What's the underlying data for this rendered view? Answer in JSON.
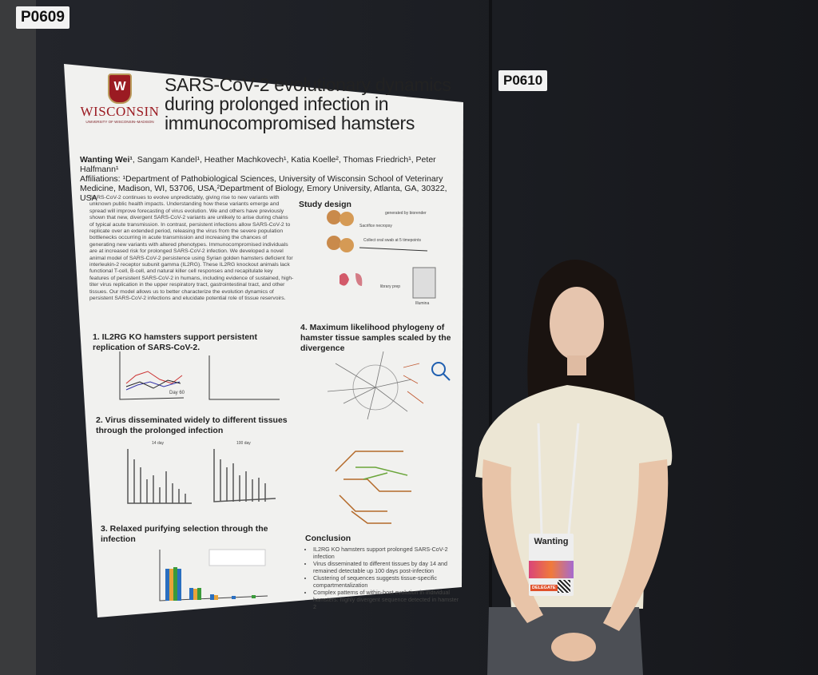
{
  "booth_labels": {
    "left": "P0609",
    "right": "P0610"
  },
  "poster": {
    "logo": {
      "crest_letter": "W",
      "wordmark": "WISCONSIN",
      "subtitle": "UNIVERSITY OF WISCONSIN–MADISON"
    },
    "title": "SARS-CoV-2 evolutionary dynamics during prolonged infection in immunocompromised hamsters",
    "lead_author": "Wanting Wei¹",
    "authors": ", Sangam Kandel¹, Heather Machkovech¹, Katia Koelle², Thomas Friedrich¹, Peter Halfmann¹",
    "affiliations": "Affiliations: ¹Department of Pathobiological Sciences, University of Wisconsin School of Veterinary Medicine, Madison, WI, 53706, USA,²Department of Biology, Emory University, Atlanta, GA, 30322, USA",
    "abstract": "SARS-CoV-2 continues to evolve unpredictably, giving rise to new variants with unknown public health impacts. Understanding how these variants emerge and spread will improve forecasting of virus evolution. We and others have previously shown that new, divergent SARS-CoV-2 variants are unlikely to arise during chains of typical acute transmission. In contrast, persistent infections allow SARS-CoV-2 to replicate over an extended period, releasing the virus from the severe population bottlenecks occurring in acute transmission and increasing the chances of generating new variants with altered phenotypes. Immunocompromised individuals are at increased risk for prolonged SARS-CoV-2 infection. We developed a novel animal model of SARS-CoV-2 persistence using Syrian golden hamsters deficient for interleukin-2 receptor subunit gamma (IL2RG). These IL2RG knockout animals lack functional T-cell, B-cell, and natural killer cell responses and recapitulate key features of persistent SARS-CoV-2 in humans, including evidence of sustained, high-titer virus replication in the upper respiratory tract, gastrointestinal tract, and other tissues. Our model allows us to better characterize the evolution dynamics of persistent SARS-CoV-2 infections and elucidate potential role of tissue reservoirs.",
    "study_design": {
      "heading": "Study design",
      "credit": "generated by biorender",
      "sacrifice_label": "Sacrifice necropsy",
      "timeline_label": "Collect oral swab at 5 timepoints",
      "timeline_ticks": [
        "0",
        "20",
        "35",
        "52",
        "65",
        "76",
        "97",
        "100"
      ],
      "tissues": [
        "duodenum",
        "ileum",
        "jejunum",
        "lung",
        "oral swab"
      ],
      "step": "library prep",
      "output": "Illumina"
    },
    "sections": [
      {
        "heading": "1.  IL2RG KO hamsters support persistent replication of SARS-CoV-2.",
        "annotation": "Day 60"
      },
      {
        "heading": "2.  Virus disseminated widely to different tissues through the prolonged infection",
        "panel_labels": [
          "14 day",
          "100 day"
        ]
      },
      {
        "heading": "3.  Relaxed purifying selection through the infection"
      },
      {
        "heading": "4.  Maximum likelihood phylogeny of hamster tissue samples scaled by the divergence"
      }
    ],
    "conclusion": {
      "heading": "Conclusion",
      "items": [
        "IL2RG KO hamsters support prolonged SARS-CoV-2 infection",
        "Virus disseminated to different tissues by day 14 and remained detectable up 100 days post-infection",
        "Clustering of sequences suggests tissue-specific compartmentalization",
        "Complex patterns of within-host evolution in individual hamsters: highly divergent sequence detected in hamster 2"
      ]
    }
  },
  "name_badge": {
    "name": "Wanting",
    "tag": "DELEGATE"
  },
  "colors": {
    "wall": "#1d1f24",
    "poster": "#f1f1ef",
    "uw_red": "#9b1b22",
    "shirt": "#ece6d4",
    "hair": "#1a1310"
  }
}
